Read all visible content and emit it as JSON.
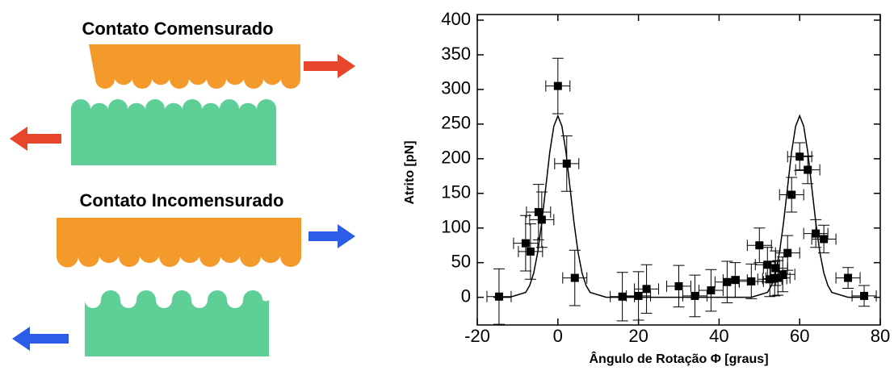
{
  "diagram": {
    "labels": [
      "Contato Comensurado",
      "Contato Incomensurado"
    ]
  },
  "chart_data": {
    "type": "scatter",
    "x_label": "Ângulo de Rotação Φ  [graus]",
    "y_label": "Atrito  [pN]",
    "xlim": [
      -20,
      80
    ],
    "xticks": [
      -20,
      0,
      20,
      40,
      60,
      80
    ],
    "ylim": [
      -40,
      400
    ],
    "yticks": [
      0,
      50,
      100,
      150,
      200,
      250,
      300,
      350,
      400
    ],
    "series": [
      {
        "type": "scatter",
        "color": "#000000",
        "x": [
          -14.6,
          -8,
          -6.8,
          -4.8,
          -4,
          0,
          2.2,
          4.2,
          16,
          20,
          22,
          30,
          34,
          38,
          42,
          44,
          48,
          50,
          52,
          52.6,
          53.8,
          54,
          54.6,
          55.8,
          57,
          58,
          60,
          62,
          64,
          66,
          72,
          76
        ],
        "values": [
          1,
          78,
          66,
          123,
          112,
          305,
          193,
          28,
          1,
          2,
          12,
          16,
          2,
          10,
          22,
          25,
          23,
          75,
          47,
          26,
          27,
          42,
          28,
          33,
          64,
          148,
          203,
          184,
          92,
          84,
          28,
          2
        ],
        "xerr": [
          3,
          3,
          3,
          3,
          3,
          3,
          3,
          3,
          3,
          3,
          3,
          3,
          3,
          3,
          3,
          3,
          3,
          3,
          3,
          3,
          3,
          3,
          3,
          3,
          3,
          3,
          3,
          3,
          3,
          3,
          3,
          3
        ],
        "yerr": [
          40,
          40,
          40,
          40,
          40,
          40,
          40,
          40,
          35,
          35,
          35,
          30,
          30,
          30,
          30,
          25,
          25,
          25,
          25,
          25,
          25,
          25,
          25,
          25,
          25,
          25,
          20,
          20,
          20,
          20,
          15,
          15
        ]
      },
      {
        "type": "line",
        "color": "#000000",
        "x": [
          -16,
          -12,
          -8,
          -7,
          -6,
          -5,
          -4,
          -3,
          -2,
          -1,
          0,
          1,
          2,
          3,
          4,
          5,
          6,
          7,
          8,
          12,
          16,
          20,
          24,
          28,
          32,
          36,
          40,
          44,
          48,
          52,
          53,
          54,
          55,
          56,
          57,
          58,
          59,
          60,
          61,
          62,
          63,
          64,
          65,
          66,
          67,
          68,
          72,
          76
        ],
        "values": [
          0,
          0,
          7,
          17,
          35,
          65,
          108,
          159,
          210,
          247,
          262,
          247,
          210,
          159,
          108,
          65,
          35,
          17,
          7,
          0,
          0,
          0,
          0,
          0,
          0,
          0,
          0,
          0,
          0,
          7,
          17,
          35,
          65,
          108,
          159,
          210,
          247,
          262,
          247,
          210,
          159,
          108,
          65,
          35,
          17,
          7,
          0,
          0
        ]
      }
    ]
  }
}
